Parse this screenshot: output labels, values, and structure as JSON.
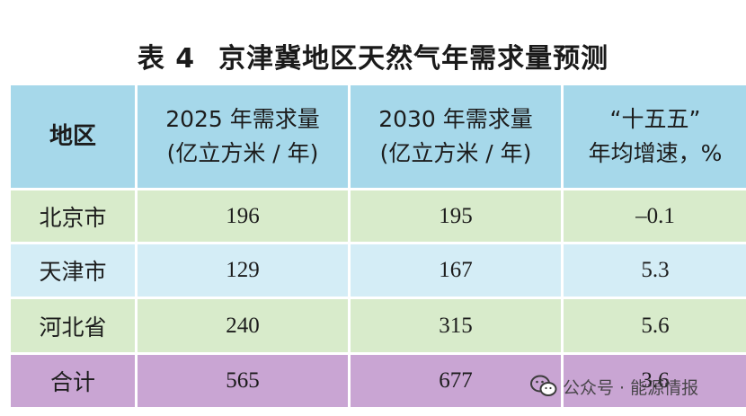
{
  "title": {
    "number": "表 4",
    "text": "京津冀地区天然气年需求量预测"
  },
  "header": {
    "region": "地区",
    "col2_line1": "2025 年需求量",
    "col2_line2": "(亿立方米 / 年)",
    "col3_line1": "2030 年需求量",
    "col3_line2": "(亿立方米 / 年)",
    "col4_line1": "“十五五”",
    "col4_line2": "年均增速，%"
  },
  "rows": [
    {
      "region": "北京市",
      "v2025": "196",
      "v2030": "195",
      "growth": "–0.1"
    },
    {
      "region": "天津市",
      "v2025": "129",
      "v2030": "167",
      "growth": "5.3"
    },
    {
      "region": "河北省",
      "v2025": "240",
      "v2030": "315",
      "growth": "5.6"
    },
    {
      "region": "合计",
      "v2025": "565",
      "v2030": "677",
      "growth": "3.6"
    }
  ],
  "watermark": {
    "text": "公众号 · 能源情报",
    "icon": "wechat-icon"
  },
  "colors": {
    "header_bg": "#a6d8ea",
    "green_row_bg": "#d8ebcb",
    "blue_row_bg": "#d4edf6",
    "total_row_bg": "#c9a5d3"
  }
}
